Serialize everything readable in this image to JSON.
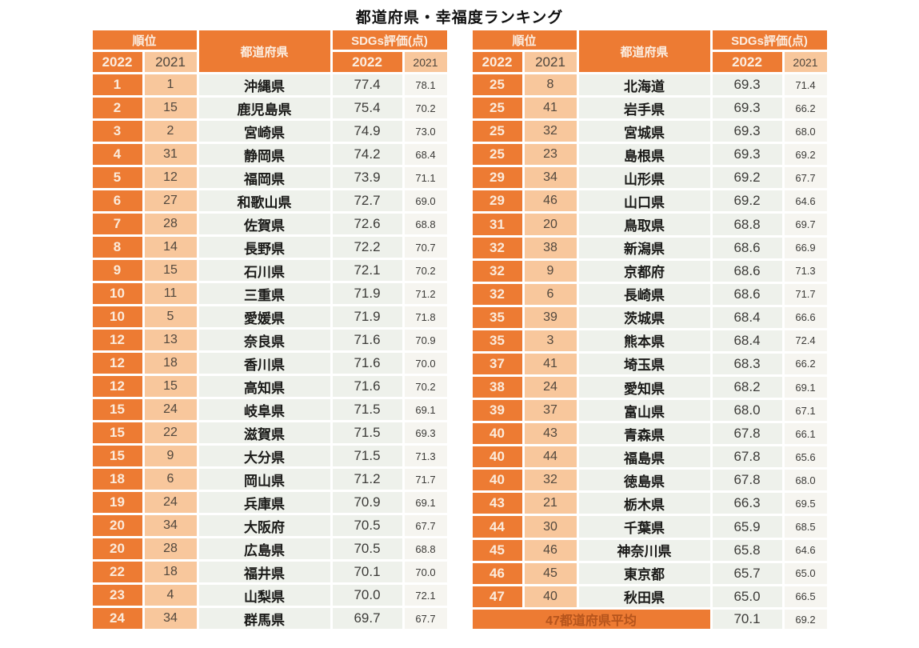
{
  "title": "都道府県・幸福度ランキング",
  "columns": {
    "rank": "順位",
    "prefecture": "都道府県",
    "score": "SDGs評価(点)",
    "y2022": "2022",
    "y2021": "2021"
  },
  "colors": {
    "orange": "#ED7B33",
    "light_orange": "#F8C79C",
    "cell_light": "#EEF1EB",
    "cell_lighter": "#F6F5F0",
    "avg_label_text": "#B5541C"
  },
  "chart_data": {
    "type": "table",
    "title": "都道府県・幸福度ランキング",
    "columns": [
      "順位 2022",
      "順位 2021",
      "都道府県",
      "SDGs評価(点) 2022",
      "SDGs評価(点) 2021"
    ],
    "layout": "two side-by-side tables; left = ranks 1-24, right = ranks 25-47 plus national average row",
    "rows": [
      [
        "1",
        "1",
        "沖縄県",
        "77.4",
        "78.1"
      ],
      [
        "2",
        "15",
        "鹿児島県",
        "75.4",
        "70.2"
      ],
      [
        "3",
        "2",
        "宮崎県",
        "74.9",
        "73.0"
      ],
      [
        "4",
        "31",
        "静岡県",
        "74.2",
        "68.4"
      ],
      [
        "5",
        "12",
        "福岡県",
        "73.9",
        "71.1"
      ],
      [
        "6",
        "27",
        "和歌山県",
        "72.7",
        "69.0"
      ],
      [
        "7",
        "28",
        "佐賀県",
        "72.6",
        "68.8"
      ],
      [
        "8",
        "14",
        "長野県",
        "72.2",
        "70.7"
      ],
      [
        "9",
        "15",
        "石川県",
        "72.1",
        "70.2"
      ],
      [
        "10",
        "11",
        "三重県",
        "71.9",
        "71.2"
      ],
      [
        "10",
        "5",
        "愛媛県",
        "71.9",
        "71.8"
      ],
      [
        "12",
        "13",
        "奈良県",
        "71.6",
        "70.9"
      ],
      [
        "12",
        "18",
        "香川県",
        "71.6",
        "70.0"
      ],
      [
        "12",
        "15",
        "高知県",
        "71.6",
        "70.2"
      ],
      [
        "15",
        "24",
        "岐阜県",
        "71.5",
        "69.1"
      ],
      [
        "15",
        "22",
        "滋賀県",
        "71.5",
        "69.3"
      ],
      [
        "15",
        "9",
        "大分県",
        "71.5",
        "71.3"
      ],
      [
        "18",
        "6",
        "岡山県",
        "71.2",
        "71.7"
      ],
      [
        "19",
        "24",
        "兵庫県",
        "70.9",
        "69.1"
      ],
      [
        "20",
        "34",
        "大阪府",
        "70.5",
        "67.7"
      ],
      [
        "20",
        "28",
        "広島県",
        "70.5",
        "68.8"
      ],
      [
        "22",
        "18",
        "福井県",
        "70.1",
        "70.0"
      ],
      [
        "23",
        "4",
        "山梨県",
        "70.0",
        "72.1"
      ],
      [
        "24",
        "34",
        "群馬県",
        "69.7",
        "67.7"
      ],
      [
        "25",
        "8",
        "北海道",
        "69.3",
        "71.4"
      ],
      [
        "25",
        "41",
        "岩手県",
        "69.3",
        "66.2"
      ],
      [
        "25",
        "32",
        "宮城県",
        "69.3",
        "68.0"
      ],
      [
        "25",
        "23",
        "島根県",
        "69.3",
        "69.2"
      ],
      [
        "29",
        "34",
        "山形県",
        "69.2",
        "67.7"
      ],
      [
        "29",
        "46",
        "山口県",
        "69.2",
        "64.6"
      ],
      [
        "31",
        "20",
        "鳥取県",
        "68.8",
        "69.7"
      ],
      [
        "32",
        "38",
        "新潟県",
        "68.6",
        "66.9"
      ],
      [
        "32",
        "9",
        "京都府",
        "68.6",
        "71.3"
      ],
      [
        "32",
        "6",
        "長崎県",
        "68.6",
        "71.7"
      ],
      [
        "35",
        "39",
        "茨城県",
        "68.4",
        "66.6"
      ],
      [
        "35",
        "3",
        "熊本県",
        "68.4",
        "72.4"
      ],
      [
        "37",
        "41",
        "埼玉県",
        "68.3",
        "66.2"
      ],
      [
        "38",
        "24",
        "愛知県",
        "68.2",
        "69.1"
      ],
      [
        "39",
        "37",
        "富山県",
        "68.0",
        "67.1"
      ],
      [
        "40",
        "43",
        "青森県",
        "67.8",
        "66.1"
      ],
      [
        "40",
        "44",
        "福島県",
        "67.8",
        "65.6"
      ],
      [
        "40",
        "32",
        "徳島県",
        "67.8",
        "68.0"
      ],
      [
        "43",
        "21",
        "栃木県",
        "66.3",
        "69.5"
      ],
      [
        "44",
        "30",
        "千葉県",
        "65.9",
        "68.5"
      ],
      [
        "45",
        "46",
        "神奈川県",
        "65.8",
        "64.6"
      ],
      [
        "46",
        "45",
        "東京都",
        "65.7",
        "65.0"
      ],
      [
        "47",
        "40",
        "秋田県",
        "65.0",
        "66.5"
      ]
    ],
    "average": {
      "label": "47都道府県平均",
      "score_2022": "70.1",
      "score_2021": "69.2"
    }
  }
}
